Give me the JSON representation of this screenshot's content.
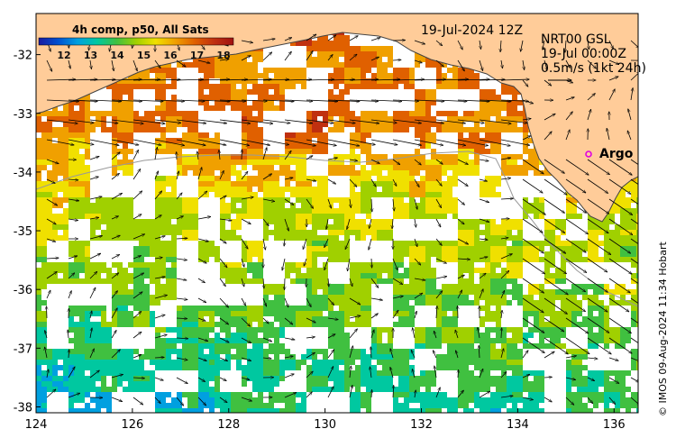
{
  "colorbar": {
    "title": "4h comp, p50, All Sats",
    "ticks": [
      "12",
      "13",
      "14",
      "15",
      "16",
      "17",
      "18"
    ],
    "colors": [
      "#1a1aa0",
      "#0050d0",
      "#00a0e0",
      "#00c8a0",
      "#40c040",
      "#a0d000",
      "#f0e000",
      "#f0a000",
      "#e06000",
      "#c03010",
      "#a01010"
    ]
  },
  "timestamp": "19-Jul-2024 12Z",
  "info": {
    "line1": "NRT00 GSL",
    "line2": "19-Jul 00:00Z",
    "line3": "0.5m/s (1kt 24h)"
  },
  "argo_label": "Argo",
  "credit": "© IMOS 09-Aug-2024 11:34 Hobart",
  "axes": {
    "x_ticks": [
      "124",
      "126",
      "128",
      "130",
      "132",
      "134",
      "136"
    ],
    "y_ticks": [
      "-32",
      "-33",
      "-34",
      "-35",
      "-36",
      "-37",
      "-38"
    ],
    "lon_range": [
      124,
      136.5
    ],
    "lat_range": [
      -38.1,
      -31.3
    ]
  },
  "colors": {
    "land": "#ffcc99",
    "coast": "#444444",
    "argo_marker": "#e000e0"
  }
}
